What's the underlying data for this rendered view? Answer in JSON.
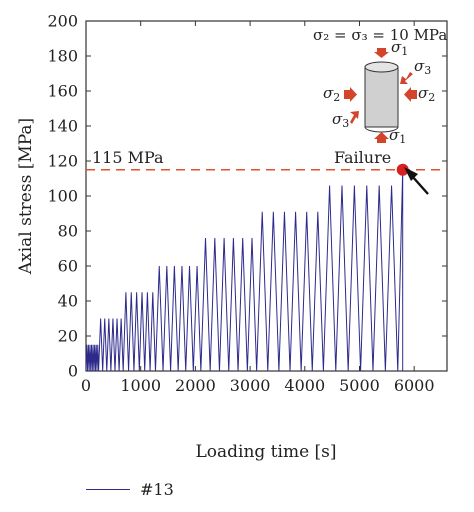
{
  "chart_data": {
    "type": "line",
    "xlabel": "Loading time [s]",
    "ylabel": "Axial stress [MPa]",
    "xlim": [
      0,
      6600
    ],
    "ylim": [
      0,
      200
    ],
    "xticks": [
      0,
      1000,
      2000,
      3000,
      4000,
      5000,
      6000
    ],
    "yticks": [
      0,
      20,
      40,
      60,
      80,
      100,
      120,
      140,
      160,
      180,
      200
    ],
    "grid": false,
    "legend_position": "bottom-left",
    "series": [
      {
        "name": "#13",
        "color": "#2e2a8c",
        "stages": [
          {
            "peak": 15,
            "start": 0,
            "end": 230,
            "cycles": 8
          },
          {
            "peak": 30,
            "start": 230,
            "end": 680,
            "cycles": 6
          },
          {
            "peak": 45,
            "start": 680,
            "end": 1270,
            "cycles": 6
          },
          {
            "peak": 60,
            "start": 1270,
            "end": 2100,
            "cycles": 6
          },
          {
            "peak": 76,
            "start": 2100,
            "end": 3120,
            "cycles": 6
          },
          {
            "peak": 91,
            "start": 3120,
            "end": 4340,
            "cycles": 6
          },
          {
            "peak": 106,
            "start": 4340,
            "end": 5700,
            "cycles": 6
          }
        ],
        "failure": {
          "x": 5790,
          "y": 115
        }
      }
    ],
    "reference_line": {
      "y": 115,
      "label": "115 MPa",
      "color": "#e0522a"
    },
    "failure_label": "Failure",
    "failure_color": "#d92020",
    "inset": {
      "title": "σ₂ = σ₃ = 10 MPa",
      "labels": [
        "σ1",
        "σ1",
        "σ2",
        "σ2",
        "σ3",
        "σ3"
      ],
      "arrow_color": "#d2452b",
      "specimen_color": "#d0d0d0"
    }
  },
  "legend": {
    "label": "#13"
  }
}
